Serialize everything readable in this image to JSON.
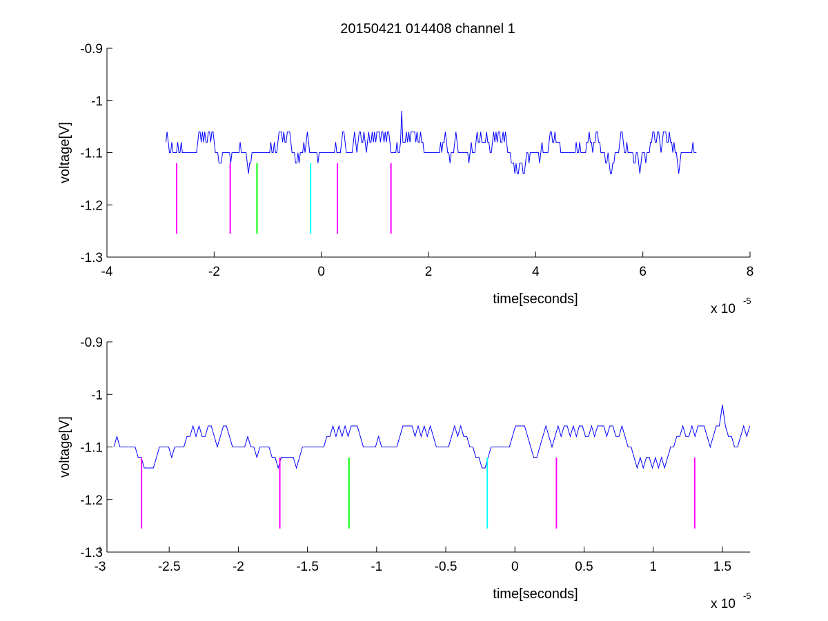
{
  "figure": {
    "title": "20150421 014408 channel 1"
  },
  "chart_data": [
    {
      "type": "line",
      "title": "20150421 014408 channel 1",
      "xlabel": "time[seconds]",
      "ylabel": "voltage[V]",
      "x_exponent_label": "x 10",
      "x_exponent": "-5",
      "xlim": [
        -4,
        8
      ],
      "ylim": [
        -1.3,
        -0.9
      ],
      "x_ticks": [
        -4,
        -2,
        0,
        2,
        4,
        6,
        8
      ],
      "x_tick_labels": [
        "-4",
        "-2",
        "0",
        "2",
        "4",
        "6",
        "8"
      ],
      "y_ticks": [
        -1.3,
        -1.2,
        -1.1,
        -1.0,
        -0.9
      ],
      "y_tick_labels": [
        "-1.3",
        "-1.2",
        "-1.1",
        "-1",
        "-0.9"
      ],
      "grid": false,
      "signal": {
        "color": "#0000ff",
        "x_start": -2.9,
        "x_end": 7.0,
        "baseline": -1.1,
        "levels": [
          -1.14,
          -1.12,
          -1.1,
          -1.08,
          -1.06
        ],
        "spike": {
          "x": 1.5,
          "y": -1.02
        }
      },
      "markers": [
        {
          "x": -2.7,
          "y_top": -1.12,
          "y_bottom": -1.255,
          "color": "#ff00ff"
        },
        {
          "x": -1.7,
          "y_top": -1.12,
          "y_bottom": -1.255,
          "color": "#ff00ff"
        },
        {
          "x": -1.2,
          "y_top": -1.12,
          "y_bottom": -1.255,
          "color": "#00ff00"
        },
        {
          "x": -0.2,
          "y_top": -1.12,
          "y_bottom": -1.255,
          "color": "#00ffff"
        },
        {
          "x": 0.3,
          "y_top": -1.12,
          "y_bottom": -1.255,
          "color": "#ff00ff"
        },
        {
          "x": 1.3,
          "y_top": -1.12,
          "y_bottom": -1.255,
          "color": "#ff00ff"
        }
      ]
    },
    {
      "type": "line",
      "title": "",
      "xlabel": "time[seconds]",
      "ylabel": "voltage[V]",
      "x_exponent_label": "x 10",
      "x_exponent": "-5",
      "xlim": [
        -2.95,
        1.7
      ],
      "ylim": [
        -1.3,
        -0.9
      ],
      "x_ticks": [
        -3,
        -2.5,
        -2,
        -1.5,
        -1,
        -0.5,
        0,
        0.5,
        1,
        1.5
      ],
      "x_tick_labels": [
        "-3",
        "-2.5",
        "-2",
        "-1.5",
        "-1",
        "-0.5",
        "0",
        "0.5",
        "1",
        "1.5"
      ],
      "y_ticks": [
        -1.3,
        -1.2,
        -1.1,
        -1.0,
        -0.9
      ],
      "y_tick_labels": [
        "-1.3",
        "-1.2",
        "-1.1",
        "-1",
        "-0.9"
      ],
      "grid": false,
      "signal": {
        "color": "#0000ff",
        "x_start": -2.9,
        "x_end": 1.7,
        "baseline": -1.1,
        "levels": [
          -1.14,
          -1.12,
          -1.1,
          -1.08,
          -1.06
        ],
        "spike": {
          "x": 1.5,
          "y": -1.02
        }
      },
      "markers": [
        {
          "x": -2.7,
          "y_top": -1.12,
          "y_bottom": -1.255,
          "color": "#ff00ff"
        },
        {
          "x": -1.7,
          "y_top": -1.12,
          "y_bottom": -1.255,
          "color": "#ff00ff"
        },
        {
          "x": -1.2,
          "y_top": -1.12,
          "y_bottom": -1.255,
          "color": "#00ff00"
        },
        {
          "x": -0.2,
          "y_top": -1.12,
          "y_bottom": -1.255,
          "color": "#00ffff"
        },
        {
          "x": 0.3,
          "y_top": -1.12,
          "y_bottom": -1.255,
          "color": "#ff00ff"
        },
        {
          "x": 1.3,
          "y_top": -1.12,
          "y_bottom": -1.255,
          "color": "#ff00ff"
        }
      ]
    }
  ]
}
